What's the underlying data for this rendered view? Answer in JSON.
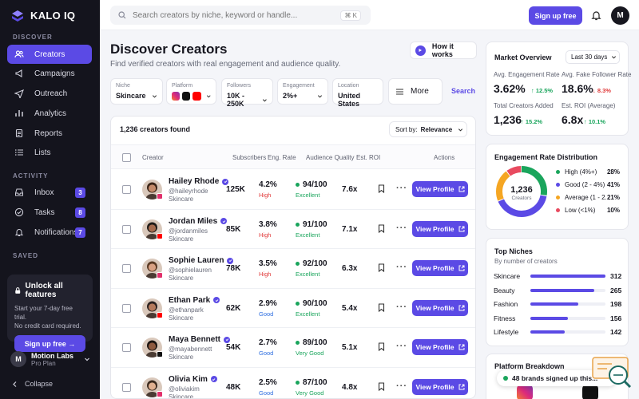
{
  "brand": {
    "name": "KALO IQ"
  },
  "sidebar": {
    "section_discover": "DISCOVER",
    "section_activity": "ACTIVITY",
    "section_saved": "SAVED",
    "discover_items": [
      {
        "label": "Creators",
        "icon": "users-icon"
      },
      {
        "label": "Campaigns",
        "icon": "megaphone-icon"
      },
      {
        "label": "Outreach",
        "icon": "send-icon"
      },
      {
        "label": "Analytics",
        "icon": "bar-chart-icon"
      },
      {
        "label": "Reports",
        "icon": "document-icon"
      },
      {
        "label": "Lists",
        "icon": "list-icon"
      }
    ],
    "activity_items": [
      {
        "label": "Inbox",
        "badge": "3",
        "icon": "inbox-icon"
      },
      {
        "label": "Tasks",
        "badge": "8",
        "icon": "check-circle-icon"
      },
      {
        "label": "Notifications",
        "badge": "7",
        "icon": "bell-icon"
      }
    ],
    "promo": {
      "title": "Unlock all features",
      "text1": "Start your 7-day free trial.",
      "text2": "No credit card required.",
      "button": "Sign up free →"
    },
    "account": {
      "initial": "M",
      "name": "Motion Labs",
      "plan": "Pro Plan"
    },
    "collapse": "Collapse"
  },
  "topbar": {
    "search_placeholder": "Search creators by niche, keyword or handle...",
    "shortcut": "⌘ K",
    "signup": "Sign up free",
    "avatar": "M"
  },
  "page": {
    "title": "Discover Creators",
    "subtitle": "Find verified creators with real engagement and audience quality.",
    "how_it_works": "How it works"
  },
  "filters": [
    {
      "label": "Niche",
      "value": "Skincare"
    },
    {
      "label": "Platform",
      "value": ""
    },
    {
      "label": "Followers",
      "value": "10K - 250K"
    },
    {
      "label": "Engagement",
      "value": "2%+"
    },
    {
      "label": "Location",
      "value": "United States"
    }
  ],
  "more": "More",
  "search_btn": "Search",
  "table": {
    "count": "1,236 creators found",
    "sort_label": "Sort by:",
    "sort_value": "Relevance",
    "headers": {
      "creator": "Creator",
      "subscribers": "Subscribers",
      "eng": "Eng. Rate",
      "aq": "Audience Quality",
      "roi": "Est. ROI",
      "actions": "Actions"
    },
    "view_profile": "View Profile",
    "rows": [
      {
        "name": "Hailey Rhode",
        "handle": "@haileyrhode",
        "niche": "Skincare",
        "subs": "125K",
        "er": "4.2%",
        "er_label": "High",
        "er_color": "#e03b3b",
        "aq": "94/100",
        "aq_label": "Excellent",
        "roi": "7.6x",
        "platform": "#e1306c"
      },
      {
        "name": "Jordan Miles",
        "handle": "@jordanmiles",
        "niche": "Skincare",
        "subs": "85K",
        "er": "3.8%",
        "er_label": "High",
        "er_color": "#e03b3b",
        "aq": "91/100",
        "aq_label": "Excellent",
        "roi": "7.1x",
        "platform": "#ff0000"
      },
      {
        "name": "Sophie Lauren",
        "handle": "@sophielauren",
        "niche": "Skincare",
        "subs": "78K",
        "er": "3.5%",
        "er_label": "High",
        "er_color": "#e03b3b",
        "aq": "92/100",
        "aq_label": "Excellent",
        "roi": "6.3x",
        "platform": "#e1306c"
      },
      {
        "name": "Ethan Park",
        "handle": "@ethanpark",
        "niche": "Skincare",
        "subs": "62K",
        "er": "2.9%",
        "er_label": "Good",
        "er_color": "#2f6fe0",
        "aq": "90/100",
        "aq_label": "Excellent",
        "roi": "5.4x",
        "platform": "#ff0000"
      },
      {
        "name": "Maya Bennett",
        "handle": "@mayabennett",
        "niche": "Skincare",
        "subs": "54K",
        "er": "2.7%",
        "er_label": "Good",
        "er_color": "#2f6fe0",
        "aq": "89/100",
        "aq_label": "Very Good",
        "roi": "5.1x",
        "platform": "#111111"
      },
      {
        "name": "Olivia Kim",
        "handle": "@oliviakim",
        "niche": "Skincare",
        "subs": "48K",
        "er": "2.5%",
        "er_label": "Good",
        "er_color": "#2f6fe0",
        "aq": "87/100",
        "aq_label": "Very Good",
        "roi": "4.8x",
        "platform": "#e1306c"
      }
    ]
  },
  "market": {
    "title": "Market Overview",
    "range": "Last 30 days",
    "avg_er_label": "Avg. Engagement Rate",
    "avg_er": "3.62%",
    "avg_er_change": "↑ 12.5%",
    "fake_label": "Avg. Fake Follower Rate",
    "fake": "18.6%",
    "fake_change": "↓ 8.3%",
    "added_label": "Total Creators Added",
    "added": "1,236",
    "added_change": "↑ 15.2%",
    "roi_label": "Est. ROI (Average)",
    "roi": "6.8x",
    "roi_change": "↑ 10.1%"
  },
  "distribution": {
    "title": "Engagement Rate Distribution",
    "center_value": "1,236",
    "center_label": "Creators",
    "items": [
      {
        "label": "High (4%+)",
        "pct": "28%",
        "color": "#1aa55c",
        "value": 28
      },
      {
        "label": "Good (2 - 4%)",
        "pct": "41%",
        "color": "#5b4ae5",
        "value": 41
      },
      {
        "label": "Average (1 - 2...",
        "pct": "21%",
        "color": "#f5a623",
        "value": 21
      },
      {
        "label": "Low (<1%)",
        "pct": "10%",
        "color": "#e84a5f",
        "value": 10
      }
    ]
  },
  "niches": {
    "title": "Top Niches",
    "subtitle": "By number of creators",
    "items": [
      {
        "label": "Skincare",
        "value": 312
      },
      {
        "label": "Beauty",
        "value": 265
      },
      {
        "label": "Fashion",
        "value": 198
      },
      {
        "label": "Fitness",
        "value": 156
      },
      {
        "label": "Lifestyle",
        "value": 142
      }
    ]
  },
  "platform": {
    "title": "Platform Breakdown"
  },
  "toast": "48 brands signed up this..."
}
